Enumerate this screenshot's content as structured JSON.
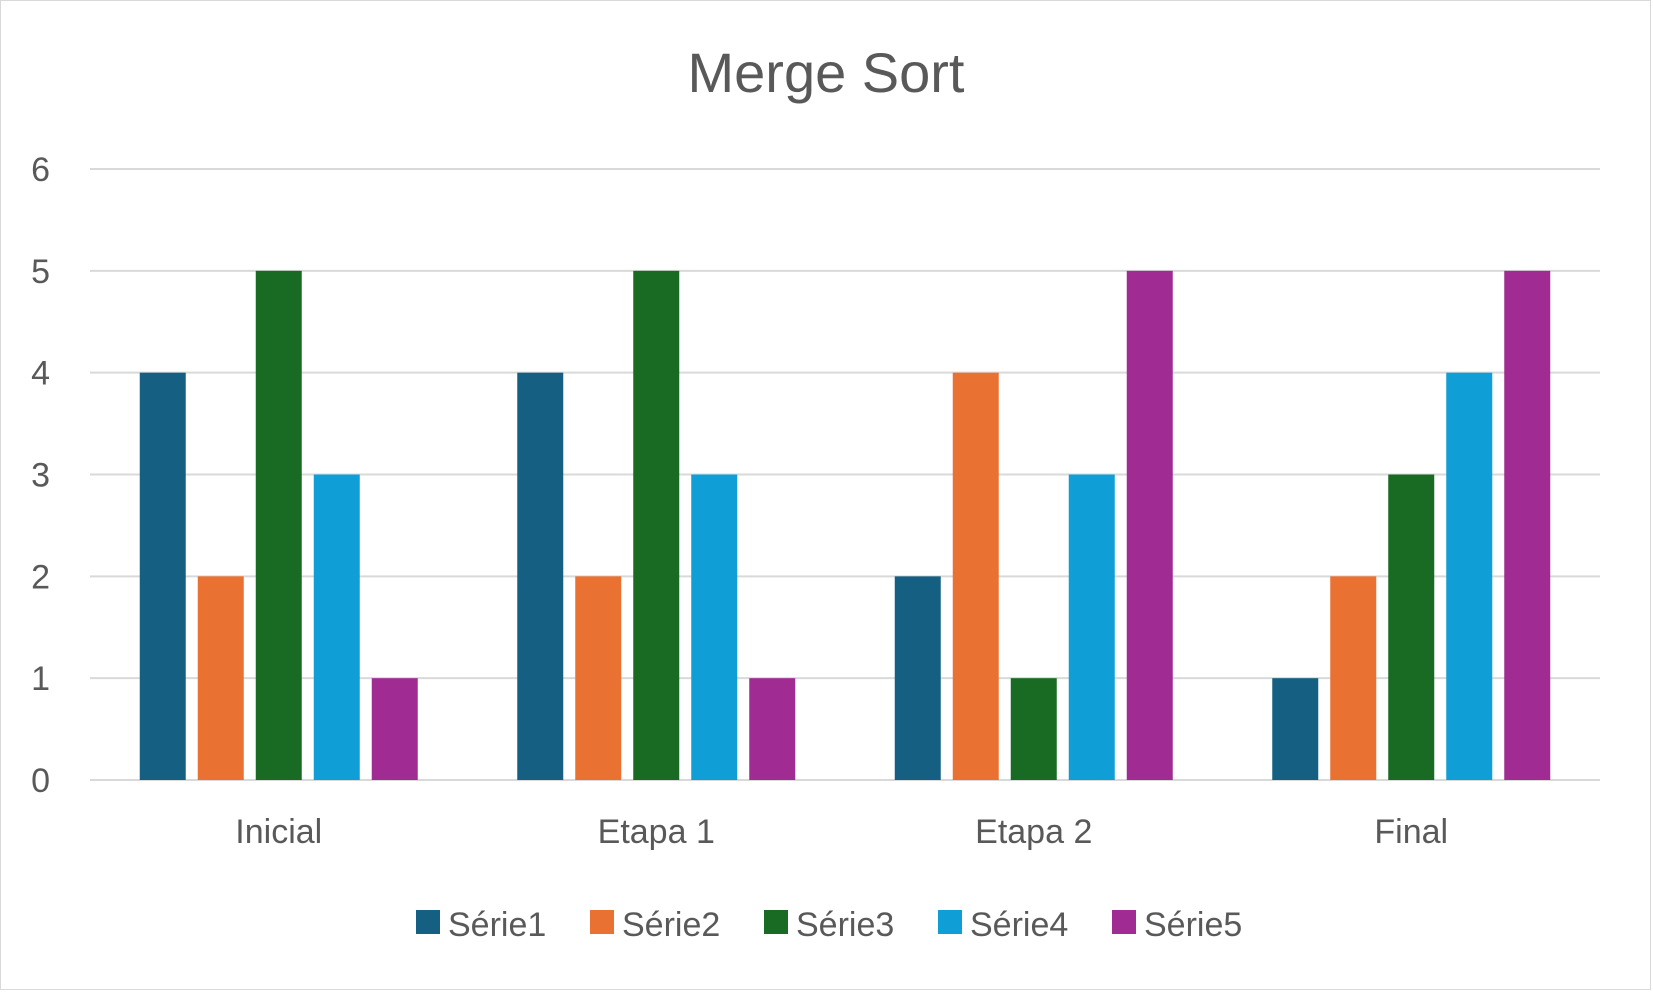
{
  "chart_data": {
    "type": "bar",
    "title": "Merge Sort",
    "xlabel": "",
    "ylabel": "",
    "ylim": [
      0,
      6
    ],
    "yticks": [
      0,
      1,
      2,
      3,
      4,
      5,
      6
    ],
    "grid": true,
    "legend_position": "bottom",
    "categories": [
      "Inicial",
      "Etapa 1",
      "Etapa 2",
      "Final"
    ],
    "series": [
      {
        "name": "Série1",
        "color": "#156082",
        "values": [
          4,
          4,
          2,
          1
        ]
      },
      {
        "name": "Série2",
        "color": "#E97132",
        "values": [
          2,
          2,
          4,
          2
        ]
      },
      {
        "name": "Série3",
        "color": "#196B24",
        "values": [
          5,
          5,
          1,
          3
        ]
      },
      {
        "name": "Série4",
        "color": "#0F9ED5",
        "values": [
          3,
          3,
          3,
          4
        ]
      },
      {
        "name": "Série5",
        "color": "#A02B93",
        "values": [
          1,
          1,
          5,
          5
        ]
      }
    ]
  }
}
